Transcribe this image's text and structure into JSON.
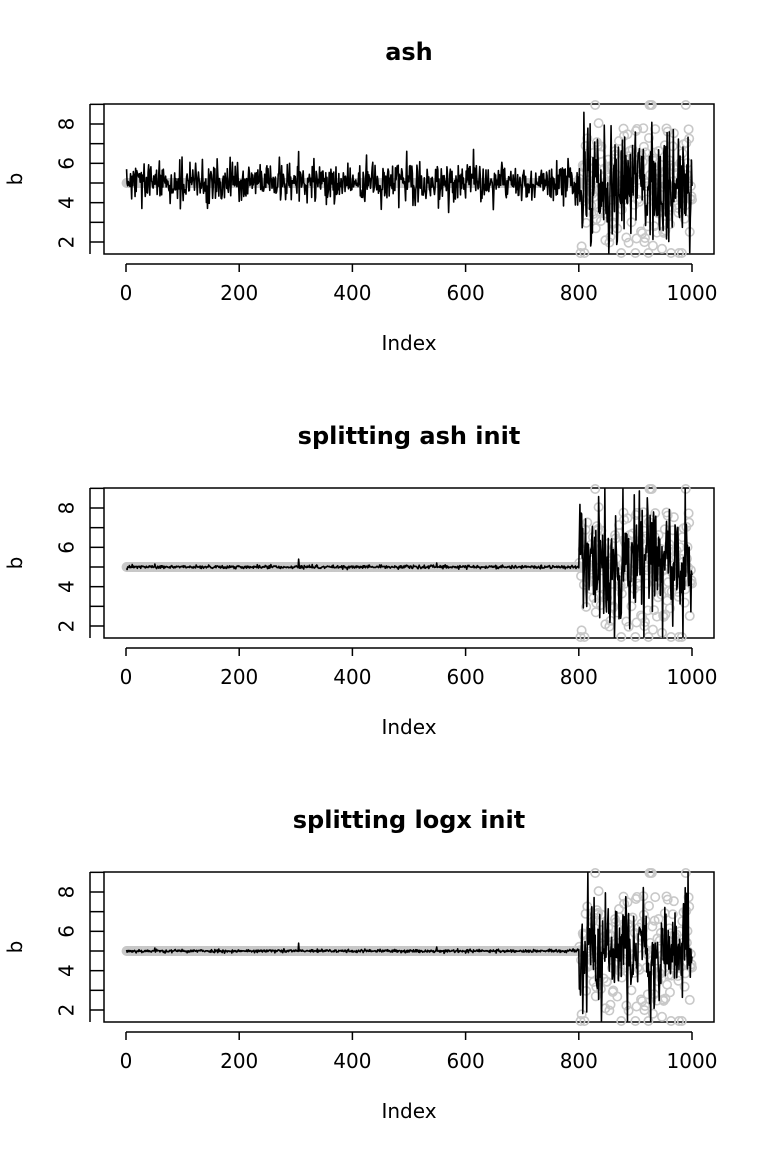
{
  "chart_data": [
    {
      "type": "scatter",
      "title": "ash",
      "xlabel": "Index",
      "ylabel": "b",
      "xlim": [
        0,
        1000
      ],
      "ylim": [
        1.5,
        9.0
      ],
      "x_ticks": [
        0,
        200,
        400,
        600,
        800,
        1000
      ],
      "y_ticks": [
        2,
        4,
        6,
        8
      ],
      "grid": false,
      "legend": "none",
      "colors": {
        "points": "#c8c8c8",
        "line": "#000000"
      },
      "series": [
        {
          "kind": "points",
          "seed": 11,
          "n": 1000,
          "base": 5.0,
          "noise_before": 0.0,
          "noise_after": 1.85,
          "change_at": 800,
          "spikes": []
        },
        {
          "kind": "line",
          "seed": 29,
          "n": 1000,
          "base": 5.0,
          "noise_before": 0.5,
          "noise_after": 1.7,
          "change_at": 800,
          "spikes": [
            [
              304,
              6.6
            ]
          ]
        }
      ]
    },
    {
      "type": "scatter",
      "title": "splitting ash init",
      "xlabel": "Index",
      "ylabel": "b",
      "xlim": [
        0,
        1000
      ],
      "ylim": [
        1.5,
        9.0
      ],
      "x_ticks": [
        0,
        200,
        400,
        600,
        800,
        1000
      ],
      "y_ticks": [
        2,
        4,
        6,
        8
      ],
      "grid": false,
      "legend": "none",
      "colors": {
        "points": "#c8c8c8",
        "line": "#000000"
      },
      "series": [
        {
          "kind": "points",
          "seed": 11,
          "n": 1000,
          "base": 5.0,
          "noise_before": 0.0,
          "noise_after": 1.85,
          "change_at": 800,
          "spikes": []
        },
        {
          "kind": "line",
          "seed": 47,
          "n": 1000,
          "base": 5.0,
          "noise_before": 0.04,
          "noise_after": 1.6,
          "change_at": 800,
          "spikes": [
            [
              50,
              5.15
            ],
            [
              304,
              5.4
            ],
            [
              548,
              5.2
            ]
          ]
        }
      ]
    },
    {
      "type": "scatter",
      "title": "splitting logx init",
      "xlabel": "Index",
      "ylabel": "b",
      "xlim": [
        0,
        1000
      ],
      "ylim": [
        1.5,
        9.0
      ],
      "x_ticks": [
        0,
        200,
        400,
        600,
        800,
        1000
      ],
      "y_ticks": [
        2,
        4,
        6,
        8
      ],
      "grid": false,
      "legend": "none",
      "colors": {
        "points": "#c8c8c8",
        "line": "#000000"
      },
      "series": [
        {
          "kind": "points",
          "seed": 11,
          "n": 1000,
          "base": 5.0,
          "noise_before": 0.0,
          "noise_after": 1.85,
          "change_at": 800,
          "spikes": []
        },
        {
          "kind": "line",
          "seed": 53,
          "n": 1000,
          "base": 5.0,
          "noise_before": 0.04,
          "noise_after": 1.6,
          "change_at": 800,
          "spikes": [
            [
              50,
              5.15
            ],
            [
              304,
              5.4
            ],
            [
              548,
              5.2
            ]
          ]
        }
      ]
    }
  ]
}
